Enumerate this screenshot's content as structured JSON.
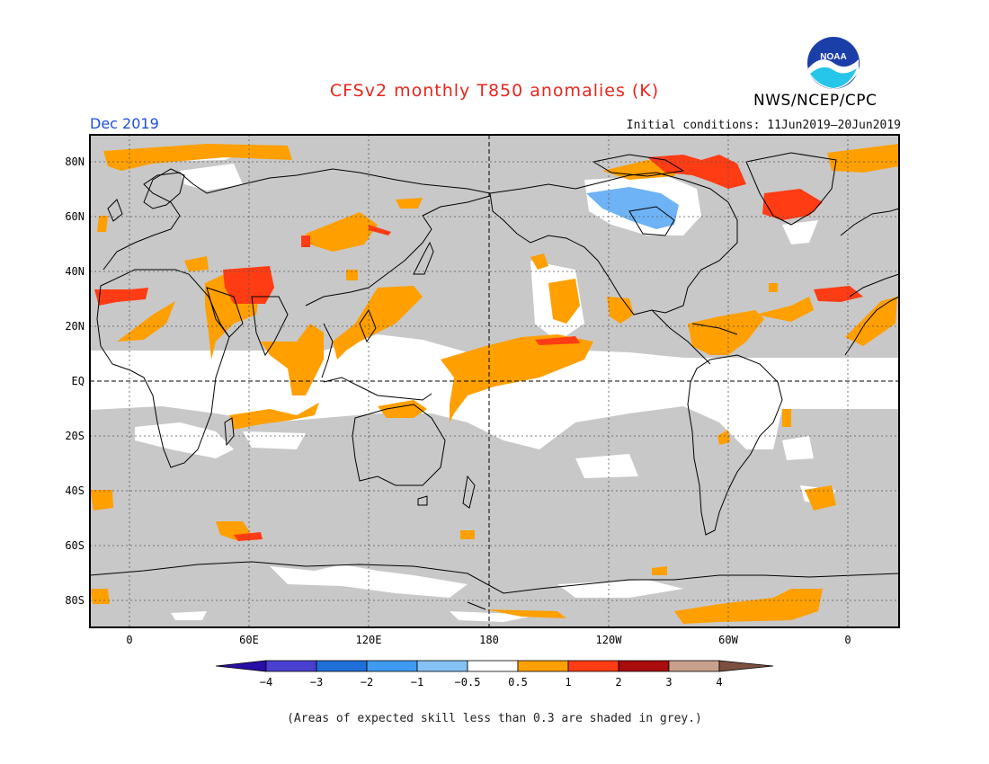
{
  "header": {
    "title": "CFSv2 monthly T850 anomalies (K)",
    "target_month": "Dec 2019",
    "initial_conditions": "Initial conditions: 11Jun2019–20Jun2019",
    "organization": "NWS/NCEP/CPC",
    "logo_text": "NOAA"
  },
  "map": {
    "lat_labels": [
      "80N",
      "60N",
      "40N",
      "20N",
      "EQ",
      "20S",
      "40S",
      "60S",
      "80S"
    ],
    "lon_labels": [
      "0",
      "60E",
      "120E",
      "180",
      "120W",
      "60W",
      "0"
    ],
    "colors": {
      "low_skill": "#c8c8c8",
      "neutral": "#ffffff",
      "warm_0_5_1": "#ff9f00",
      "warm_1_2": "#ff3c14",
      "cool_m1_m0_5": "#6eb3f5",
      "coast": "#000000"
    }
  },
  "colorbar": {
    "labels": [
      "−4",
      "−3",
      "−2",
      "−1",
      "−0.5",
      "0.5",
      "1",
      "2",
      "3",
      "4"
    ],
    "colors": [
      "#2a0ea8",
      "#4a40d0",
      "#1f6fd8",
      "#3e9af0",
      "#84c2f6",
      "#ffffff",
      "#ff9f00",
      "#ff3c14",
      "#a80c0c",
      "#c9a08c",
      "#7b5040"
    ]
  },
  "footnote": "(Areas of expected skill less than 0.3 are shaded in grey.)"
}
